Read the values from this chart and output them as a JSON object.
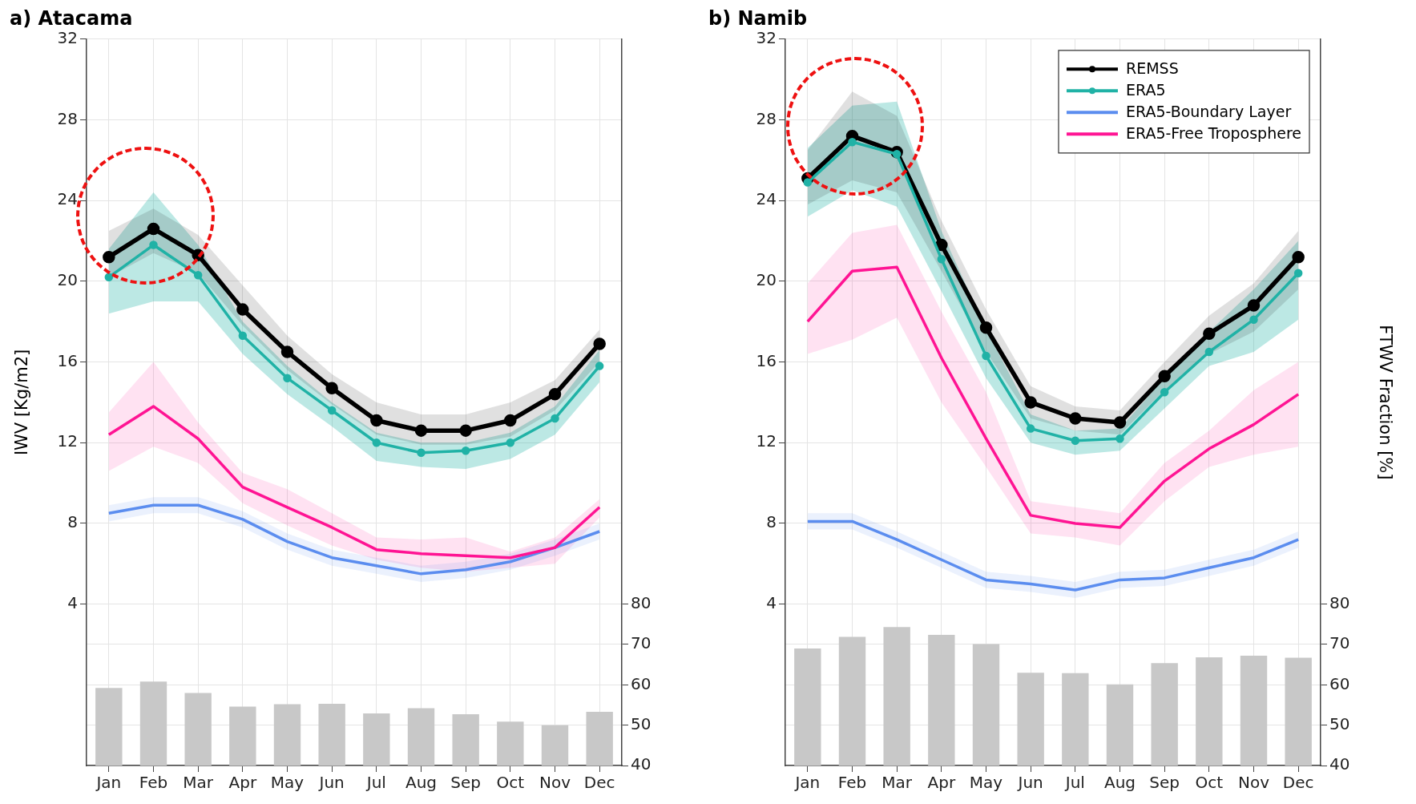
{
  "chart_data": [
    {
      "type": "line",
      "title": "a) Atacama",
      "ylabel": "IWV [Kg/m2]",
      "categories": [
        "Jan",
        "Feb",
        "Mar",
        "Apr",
        "May",
        "Jun",
        "Jul",
        "Aug",
        "Sep",
        "Oct",
        "Nov",
        "Dec"
      ],
      "ylim": [
        -4,
        32
      ],
      "yticks": [
        4,
        8,
        12,
        16,
        20,
        24,
        28,
        32
      ],
      "y2lim": [
        40,
        220
      ],
      "y2ticks": [
        40,
        50,
        60,
        70,
        80
      ],
      "grid": true,
      "legend": false,
      "series": [
        {
          "color": "#000000",
          "marker": "circle",
          "values": [
            21.2,
            22.6,
            21.3,
            18.6,
            16.5,
            14.7,
            13.1,
            12.6,
            12.6,
            13.1,
            14.4,
            16.9
          ],
          "upper": [
            22.5,
            23.6,
            22.3,
            19.8,
            17.3,
            15.4,
            14.0,
            13.4,
            13.4,
            14.0,
            15.1,
            17.6
          ],
          "lower": [
            20.2,
            21.4,
            20.4,
            17.8,
            15.6,
            13.9,
            12.4,
            11.9,
            11.9,
            12.3,
            13.6,
            16.0
          ]
        },
        {
          "color": "#20b2a6",
          "marker": "circle",
          "values": [
            20.2,
            21.8,
            20.3,
            17.3,
            15.2,
            13.6,
            12.0,
            11.5,
            11.6,
            12.0,
            13.2,
            15.8
          ],
          "upper": [
            21.6,
            24.4,
            21.8,
            18.0,
            15.8,
            14.0,
            12.5,
            12.0,
            12.0,
            12.5,
            13.8,
            16.6
          ],
          "lower": [
            18.4,
            19.0,
            19.0,
            16.4,
            14.4,
            12.8,
            11.1,
            10.8,
            10.7,
            11.2,
            12.4,
            15.0
          ]
        },
        {
          "color": "#5b8def",
          "marker": "none",
          "values": [
            8.5,
            8.9,
            8.9,
            8.2,
            7.1,
            6.3,
            5.9,
            5.5,
            5.7,
            6.1,
            6.8,
            7.6
          ],
          "upper": [
            8.9,
            9.3,
            9.3,
            8.6,
            7.5,
            6.7,
            6.3,
            5.9,
            6.1,
            6.5,
            7.2,
            8.0
          ],
          "lower": [
            8.1,
            8.5,
            8.5,
            7.8,
            6.7,
            5.9,
            5.5,
            5.1,
            5.3,
            5.7,
            6.4,
            7.2
          ]
        },
        {
          "color": "#ff1493",
          "marker": "none",
          "values": [
            12.4,
            13.8,
            12.2,
            9.8,
            8.8,
            7.8,
            6.7,
            6.5,
            6.4,
            6.3,
            6.8,
            8.8
          ],
          "upper": [
            13.5,
            16.0,
            13.0,
            10.5,
            9.7,
            8.5,
            7.3,
            7.2,
            7.3,
            6.6,
            7.3,
            9.2
          ],
          "lower": [
            10.6,
            11.8,
            11.0,
            9.0,
            7.9,
            6.9,
            6.2,
            5.8,
            5.6,
            5.8,
            6.0,
            8.3
          ]
        },
        {
          "type": "bar",
          "axis": "y2",
          "color": "#c8c8c8",
          "values": [
            59.2,
            60.8,
            58.0,
            54.6,
            55.2,
            55.3,
            52.9,
            54.2,
            52.7,
            50.9,
            50.0,
            53.3
          ]
        }
      ]
    },
    {
      "type": "line",
      "title": "b) Namib",
      "y2label": "FTWV Fraction [%]",
      "categories": [
        "Jan",
        "Feb",
        "Mar",
        "Apr",
        "May",
        "Jun",
        "Jul",
        "Aug",
        "Sep",
        "Oct",
        "Nov",
        "Dec"
      ],
      "ylim": [
        -4,
        32
      ],
      "yticks": [
        4,
        8,
        12,
        16,
        20,
        24,
        28,
        32
      ],
      "y2lim": [
        40,
        220
      ],
      "y2ticks": [
        40,
        50,
        60,
        70,
        80
      ],
      "grid": true,
      "legend": "top right",
      "series": [
        {
          "name": "REMSS",
          "color": "#000000",
          "marker": "circle",
          "values": [
            25.1,
            27.2,
            26.4,
            21.8,
            17.7,
            14.0,
            13.2,
            13.0,
            15.3,
            17.4,
            18.8,
            21.2
          ],
          "upper": [
            26.5,
            29.4,
            28.2,
            23.0,
            18.6,
            14.8,
            13.8,
            13.6,
            16.0,
            18.3,
            19.9,
            22.5
          ],
          "lower": [
            23.8,
            25.0,
            24.4,
            20.5,
            16.5,
            13.2,
            12.6,
            12.4,
            14.6,
            16.4,
            17.5,
            19.6
          ]
        },
        {
          "name": "ERA5",
          "color": "#20b2a6",
          "marker": "circle",
          "values": [
            24.9,
            26.9,
            26.3,
            21.1,
            16.3,
            12.7,
            12.1,
            12.2,
            14.5,
            16.5,
            18.1,
            20.4
          ],
          "upper": [
            26.6,
            28.7,
            28.9,
            22.5,
            17.6,
            13.4,
            12.6,
            12.7,
            15.2,
            17.5,
            19.6,
            22.0
          ],
          "lower": [
            23.2,
            24.5,
            23.7,
            19.5,
            15.2,
            12.0,
            11.4,
            11.6,
            13.7,
            15.8,
            16.5,
            18.1
          ]
        },
        {
          "name": "ERA5-Boundary Layer",
          "color": "#5b8def",
          "marker": "none",
          "values": [
            8.1,
            8.1,
            7.2,
            6.2,
            5.2,
            5.0,
            4.7,
            5.2,
            5.3,
            5.8,
            6.3,
            7.2
          ],
          "upper": [
            8.5,
            8.5,
            7.6,
            6.6,
            5.6,
            5.4,
            5.1,
            5.6,
            5.7,
            6.2,
            6.7,
            7.6
          ],
          "lower": [
            7.7,
            7.7,
            6.8,
            5.8,
            4.8,
            4.6,
            4.3,
            4.8,
            4.9,
            5.4,
            5.9,
            6.8
          ]
        },
        {
          "name": "ERA5-Free Troposphere",
          "color": "#ff1493",
          "marker": "none",
          "values": [
            18.0,
            20.5,
            20.7,
            16.2,
            12.2,
            8.4,
            8.0,
            7.8,
            10.1,
            11.7,
            12.9,
            14.4
          ],
          "upper": [
            19.9,
            22.4,
            22.8,
            18.5,
            14.5,
            9.1,
            8.8,
            8.5,
            11.0,
            12.6,
            14.6,
            16.0
          ],
          "lower": [
            16.4,
            17.1,
            18.2,
            14.0,
            10.8,
            7.5,
            7.3,
            6.9,
            9.1,
            10.8,
            11.4,
            11.8
          ]
        },
        {
          "type": "bar",
          "axis": "y2",
          "color": "#c8c8c8",
          "values": [
            69.0,
            71.9,
            74.3,
            72.4,
            70.1,
            63.0,
            62.9,
            60.1,
            65.4,
            66.8,
            67.2,
            66.7
          ]
        }
      ]
    }
  ]
}
